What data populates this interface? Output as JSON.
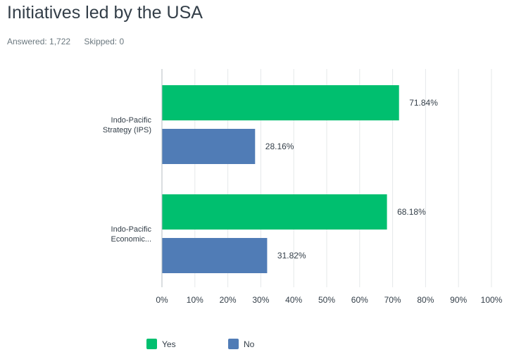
{
  "header": {
    "title": "Initiatives led by the USA",
    "answered": "Answered: 1,722",
    "skipped": "Skipped: 0"
  },
  "colors": {
    "yes": "#00bf6f",
    "no": "#507cb6",
    "grid": "#e5e8ea",
    "axis": "#b5bcc0"
  },
  "chart_data": {
    "type": "bar",
    "orientation": "horizontal",
    "categories": [
      [
        "Indo-Pacific",
        "Strategy (IPS)"
      ],
      [
        "Indo-Pacific",
        "Economic..."
      ]
    ],
    "series": [
      {
        "name": "Yes",
        "values": [
          71.84,
          68.18
        ],
        "labels": [
          "71.84%",
          "68.18%"
        ]
      },
      {
        "name": "No",
        "values": [
          28.16,
          31.82
        ],
        "labels": [
          "28.16%",
          "31.82%"
        ]
      }
    ],
    "xlim": [
      0,
      100
    ],
    "xticks": [
      "0%",
      "10%",
      "20%",
      "30%",
      "40%",
      "50%",
      "60%",
      "70%",
      "80%",
      "90%",
      "100%"
    ],
    "grid": true,
    "legend_position": "bottom-left"
  }
}
